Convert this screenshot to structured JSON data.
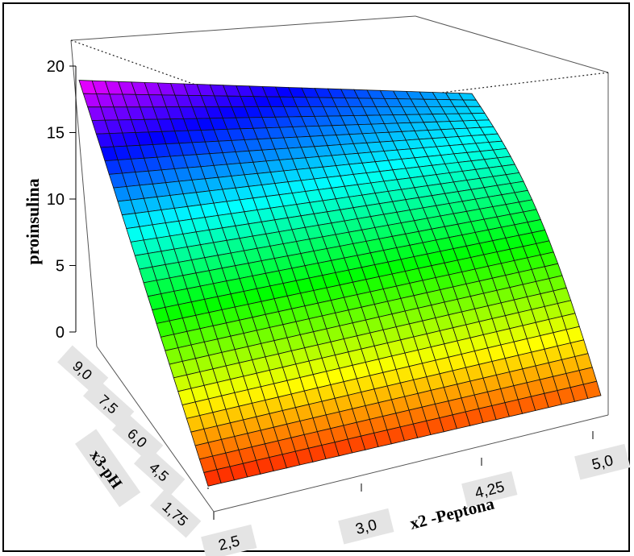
{
  "chart_data": {
    "type": "surface3d",
    "zlabel": "proinsulina",
    "xlabel": "x2 -Peptona",
    "ylabel": "x3-pH",
    "z_ticks": [
      "0",
      "5",
      "10",
      "15",
      "20"
    ],
    "z_tick_values": [
      0,
      5,
      10,
      15,
      20
    ],
    "x_ticks": [
      "2,5",
      "3,0",
      "4,25",
      "5,0"
    ],
    "y_ticks": [
      "1,75",
      "4,5",
      "6,0",
      "7,5",
      "9,0"
    ],
    "zlim": [
      0,
      21
    ],
    "grid_resolution": [
      30,
      30
    ],
    "colormap": "rainbow (red at low z → magenta at high z)",
    "corner_z_values": {
      "x2_low_pH_low": 0.5,
      "x2_high_pH_low": 1.5,
      "x2_low_pH_high": 21,
      "x2_high_pH_high": 13.5
    },
    "tick_label_background": "#e4e4e4"
  }
}
